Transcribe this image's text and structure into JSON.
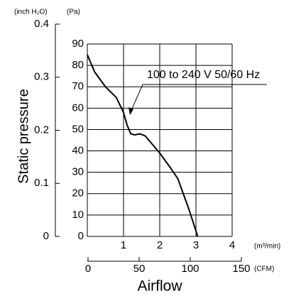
{
  "chart_data": {
    "type": "line",
    "y_label": "Static pressure",
    "x_label": "Airflow",
    "y_unit": "(Pa)",
    "y2_unit": "(inch H₂O)",
    "x_unit": "(m³/min)",
    "x2_unit": "(CFM)",
    "annotation": "100 to 240 V 50/60 Hz",
    "x": [
      0,
      0.2,
      0.5,
      0.8,
      1.0,
      1.1,
      1.2,
      1.3,
      1.45,
      1.6,
      1.8,
      2.0,
      2.3,
      2.5,
      2.8,
      3.05
    ],
    "series": [
      {
        "color": "#000000",
        "values": [
          85,
          77,
          70,
          65,
          58,
          52,
          48,
          47.5,
          48,
          47,
          43,
          39,
          32,
          27,
          13,
          0
        ]
      }
    ],
    "xlim": [
      0,
      4
    ],
    "xticks": [
      1,
      2,
      3,
      4
    ],
    "x2lim": [
      0,
      150
    ],
    "x2ticks": [
      0,
      50,
      100,
      150
    ],
    "ylim": [
      0,
      90
    ],
    "yticks": [
      0,
      10,
      20,
      30,
      40,
      50,
      60,
      70,
      80,
      90
    ],
    "y2lim": [
      0,
      0.4
    ],
    "y2ticks": [
      0,
      0.1,
      0.2,
      0.3,
      0.4
    ],
    "grid": true
  }
}
